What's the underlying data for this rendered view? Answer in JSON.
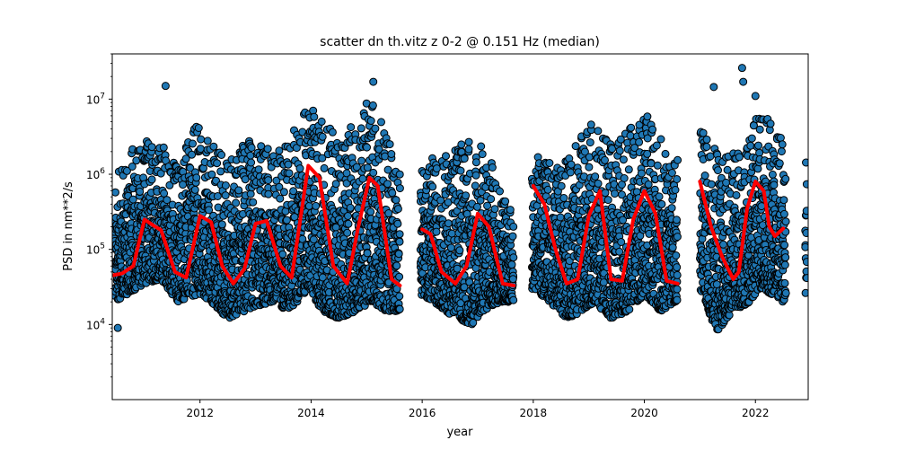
{
  "chart_data": {
    "type": "scatter",
    "title": "scatter dn th.vitz z 0-2 @ 0.151 Hz (median)",
    "xlabel": "year",
    "ylabel": "PSD in nm**2/s",
    "xlim": [
      2010.42,
      2022.95
    ],
    "ylim": [
      1000,
      40000000
    ],
    "yscale": "log",
    "grid": false,
    "x_ticks": [
      2012,
      2014,
      2016,
      2018,
      2020,
      2022
    ],
    "x_tick_labels": [
      "2012",
      "2014",
      "2016",
      "2018",
      "2020",
      "2022"
    ],
    "y_ticks": [
      10000,
      100000,
      1000000,
      10000000
    ],
    "y_tick_labels": [
      "10^4",
      "10^5",
      "10^6",
      "10^7"
    ],
    "colors": {
      "scatter_fill": "#1f77b4",
      "scatter_edge": "#000000",
      "median_line": "#ff0000"
    },
    "data_gaps": [
      [
        2015.6,
        2015.97
      ],
      [
        2017.65,
        2017.98
      ],
      [
        2020.6,
        2021.0
      ],
      [
        2022.55,
        2022.9
      ]
    ],
    "series": [
      {
        "type": "scatter",
        "envelope": {
          "x": [
            2010.45,
            2010.7,
            2011.0,
            2011.3,
            2011.6,
            2011.95,
            2012.2,
            2012.5,
            2012.8,
            2013.1,
            2013.3,
            2013.6,
            2013.95,
            2014.2,
            2014.5,
            2014.8,
            2015.1,
            2015.35,
            2015.55,
            2016.0,
            2016.3,
            2016.6,
            2016.9,
            2017.1,
            2017.4,
            2017.6,
            2018.0,
            2018.3,
            2018.6,
            2018.9,
            2019.1,
            2019.4,
            2019.7,
            2020.0,
            2020.3,
            2020.55,
            2021.0,
            2021.3,
            2021.6,
            2021.9,
            2022.1,
            2022.3,
            2022.5,
            2022.93
          ],
          "high": [
            800000,
            2000000,
            3000000,
            2500000,
            1500000,
            5000000,
            3000000,
            1500000,
            3000000,
            2500000,
            2000000,
            3000000,
            8000000,
            6000000,
            3000000,
            5000000,
            12000000,
            4000000,
            1500000,
            2000000,
            1500000,
            2500000,
            3000000,
            2500000,
            900000,
            400000,
            2000000,
            1500000,
            1500000,
            4000000,
            5000000,
            2500000,
            4000000,
            7000000,
            3000000,
            1500000,
            5000000,
            2000000,
            2000000,
            3000000,
            10000000,
            5000000,
            3000000,
            2000000
          ],
          "low": [
            20000,
            25000,
            35000,
            40000,
            20000,
            25000,
            20000,
            12000,
            15000,
            18000,
            20000,
            15000,
            30000,
            15000,
            12000,
            15000,
            20000,
            15000,
            15000,
            25000,
            18000,
            12000,
            10000,
            15000,
            20000,
            20000,
            30000,
            20000,
            12000,
            15000,
            20000,
            12000,
            15000,
            25000,
            15000,
            20000,
            30000,
            8000,
            15000,
            20000,
            30000,
            25000,
            20000,
            20000
          ]
        },
        "outliers": [
          [
            2010.52,
            9000
          ],
          [
            2011.38,
            15000000
          ],
          [
            2021.25,
            14500000
          ],
          [
            2021.76,
            26000000
          ],
          [
            2021.78,
            17000000
          ],
          [
            2022.0,
            11000000
          ],
          [
            2015.12,
            17000000
          ]
        ]
      },
      {
        "type": "line",
        "segments": [
          {
            "x": [
              2010.42,
              2010.6,
              2010.8,
              2011.0,
              2011.15,
              2011.3,
              2011.55,
              2011.75,
              2012.0,
              2012.2,
              2012.4,
              2012.6,
              2012.8,
              2013.0,
              2013.2,
              2013.45,
              2013.65,
              2013.95,
              2014.15,
              2014.4,
              2014.65,
              2014.85,
              2015.05,
              2015.2,
              2015.45,
              2015.6
            ],
            "y": [
              45000,
              48000,
              60000,
              250000,
              210000,
              180000,
              50000,
              42000,
              280000,
              230000,
              60000,
              35000,
              55000,
              220000,
              240000,
              60000,
              42000,
              1300000,
              900000,
              60000,
              35000,
              200000,
              900000,
              700000,
              40000,
              33000
            ]
          },
          {
            "x": [
              2016.0,
              2016.15,
              2016.35,
              2016.6,
              2016.8,
              2017.0,
              2017.2,
              2017.45,
              2017.65
            ],
            "y": [
              185000,
              160000,
              50000,
              35000,
              60000,
              300000,
              200000,
              35000,
              33000
            ]
          },
          {
            "x": [
              2018.0,
              2018.2,
              2018.4,
              2018.6,
              2018.8,
              2019.0,
              2019.2,
              2019.4,
              2019.6,
              2019.8,
              2020.0,
              2020.2,
              2020.4,
              2020.6
            ],
            "y": [
              700000,
              400000,
              100000,
              35000,
              40000,
              280000,
              600000,
              40000,
              38000,
              250000,
              600000,
              300000,
              38000,
              35000
            ]
          },
          {
            "x": [
              2021.0,
              2021.2,
              2021.4,
              2021.6,
              2021.7,
              2021.85,
              2022.0,
              2022.15,
              2022.25,
              2022.35,
              2022.5
            ],
            "y": [
              800000,
              200000,
              80000,
              40000,
              50000,
              350000,
              800000,
              600000,
              200000,
              150000,
              190000
            ]
          }
        ]
      }
    ]
  }
}
